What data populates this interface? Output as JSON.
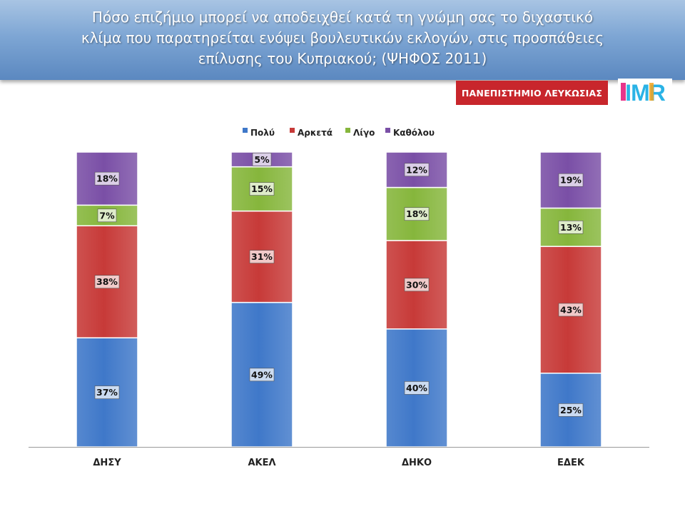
{
  "header": {
    "title_lines": [
      "Πόσο επιζήμιο μπορεί να αποδειχθεί κατά τη γνώμη σας το διχαστικό",
      "κλίμα που παρατηρείται ενόψει βουλευτικών εκλογών, στις προσπάθειες",
      "επίλυσης του Κυπριακού; (ΨΗΦΟΣ 2011)"
    ],
    "university_logo_text": "ΠΑΝΕΠΙΣΤΗΜΙΟ ΛΕΥΚΩΣΙΑΣ",
    "imr_logo_text": "IMR"
  },
  "chart_data": {
    "type": "bar",
    "stacked": true,
    "normalized_percent": true,
    "title": "Πόσο επιζήμιο μπορεί να αποδειχθεί κατά τη γνώμη σας το διχαστικό κλίμα που παρατηρείται ενόψει βουλευτικών εκλογών, στις προσπάθειες επίλυσης του Κυπριακού; (ΨΗΦΟΣ 2011)",
    "categories": [
      "ΔΗΣΥ",
      "ΑΚΕΛ",
      "ΔΗΚΟ",
      "ΕΔΕΚ"
    ],
    "series": [
      {
        "name": "Πολύ",
        "values": [
          37,
          49,
          40,
          25
        ],
        "color": "#3f78c9"
      },
      {
        "name": "Αρκετά",
        "values": [
          38,
          31,
          30,
          43
        ],
        "color": "#c73a38"
      },
      {
        "name": "Λίγο",
        "values": [
          7,
          15,
          18,
          13
        ],
        "color": "#86b63c"
      },
      {
        "name": "Καθόλου",
        "values": [
          18,
          5,
          12,
          19
        ],
        "color": "#7a4fa6"
      }
    ],
    "value_suffix": "%",
    "legend_position": "top-center",
    "xlabel": "",
    "ylabel": "",
    "grid": false
  }
}
